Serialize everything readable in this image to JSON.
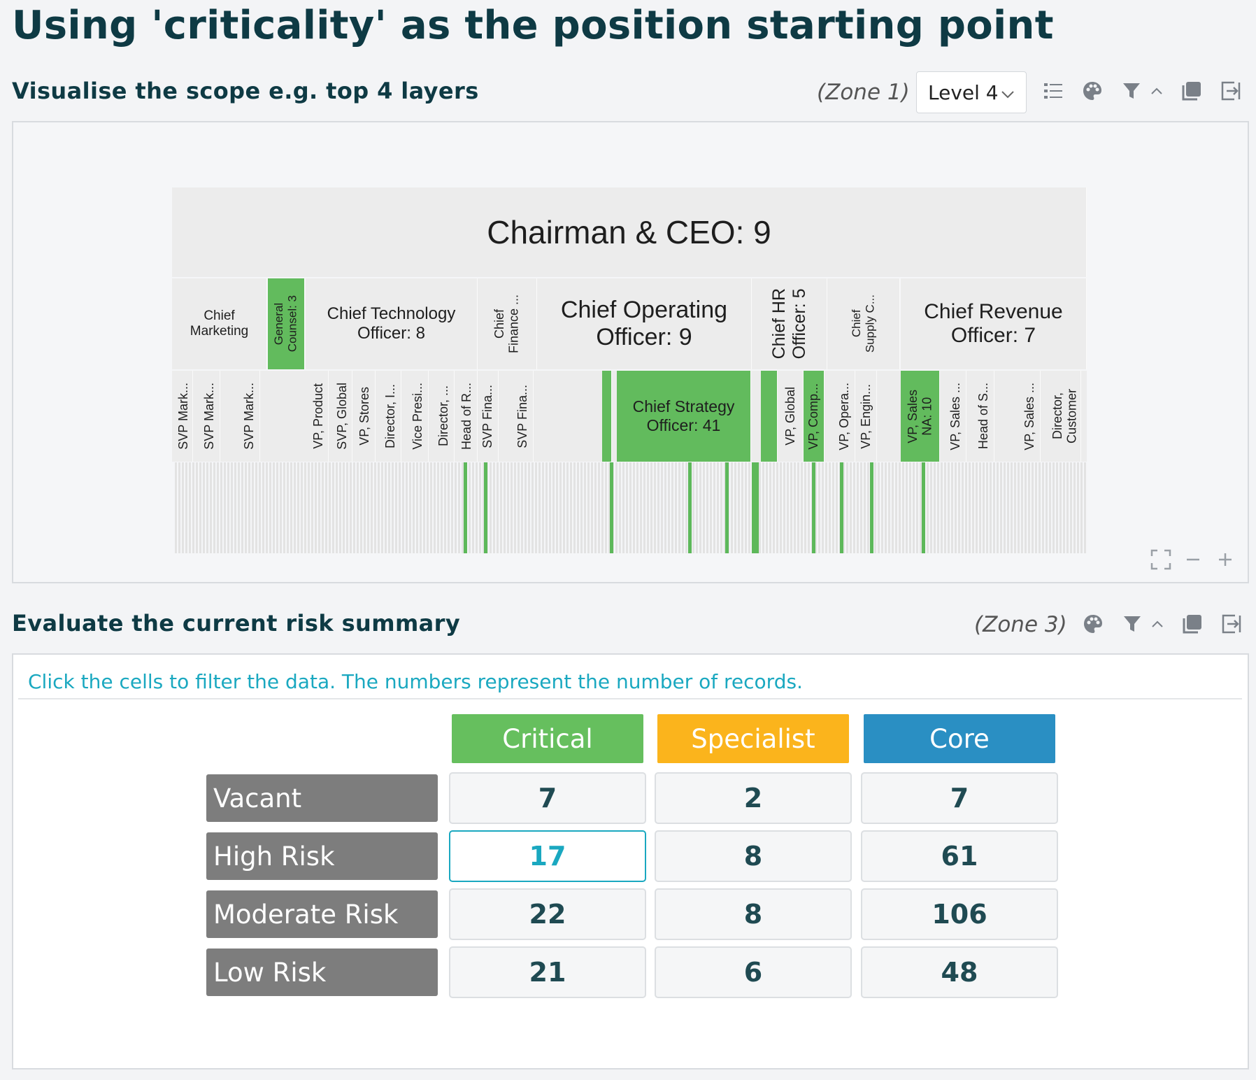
{
  "page": {
    "title": "Using 'criticality' as the position starting point"
  },
  "zone1": {
    "title": "Visualise the scope e.g. top 4 layers",
    "zone_label": "(Zone 1)",
    "level_select": {
      "value": "Level 4"
    },
    "toolbar_icons": [
      "list-icon",
      "palette-icon",
      "filter-icon",
      "collapse-icon",
      "copy-icon",
      "export-icon"
    ],
    "org_chart": {
      "root": {
        "label": "Chairman & CEO: 9"
      },
      "level2": [
        {
          "label": "Chief\nMarketing",
          "critical": false,
          "vertical": false
        },
        {
          "label": "General\nCounsel: 3",
          "critical": true,
          "vertical": true
        },
        {
          "label": "Chief Technology\nOfficer: 8",
          "critical": false,
          "vertical": false
        },
        {
          "label": "Chief\nFinance ...",
          "critical": false,
          "vertical": true
        },
        {
          "label": "Chief Operating\nOfficer: 9",
          "critical": false,
          "vertical": false
        },
        {
          "label": "Chief HR\nOfficer: 5",
          "critical": false,
          "vertical": true
        },
        {
          "label": "Chief\nSupply C...",
          "critical": false,
          "vertical": true
        },
        {
          "label": "Chief Revenue\nOfficer: 7",
          "critical": false,
          "vertical": false
        }
      ],
      "level3": [
        {
          "label": "SVP Mark...",
          "critical": false
        },
        {
          "label": "SVP Mark...",
          "critical": false
        },
        {
          "label": "SVP Mark...",
          "critical": false
        },
        {
          "label": "VP, Product",
          "critical": false
        },
        {
          "label": "SVP, Global",
          "critical": false
        },
        {
          "label": "VP, Stores",
          "critical": false
        },
        {
          "label": "Director, I...",
          "critical": false
        },
        {
          "label": "Vice Presi...",
          "critical": false
        },
        {
          "label": "Director, ...",
          "critical": false
        },
        {
          "label": "Head of R...",
          "critical": false
        },
        {
          "label": "SVP Fina...",
          "critical": false
        },
        {
          "label": "SVP Fina...",
          "critical": false
        },
        {
          "label": "Chief Strategy\nOfficer: 41",
          "critical": true
        },
        {
          "label": "VP, Global",
          "critical": false
        },
        {
          "label": "VP, Comp...",
          "critical": true
        },
        {
          "label": "VP, Opera...",
          "critical": false
        },
        {
          "label": "VP, Engin...",
          "critical": false
        },
        {
          "label": "VP, Sales\nNA: 10",
          "critical": true
        },
        {
          "label": "VP, Sales ...",
          "critical": false
        },
        {
          "label": "Head of S...",
          "critical": false
        },
        {
          "label": "VP, Sales ...",
          "critical": false
        },
        {
          "label": "Director,\nCustomer",
          "critical": false
        }
      ]
    },
    "zoom_controls": [
      "fullscreen-icon",
      "zoom-out-icon",
      "zoom-in-icon"
    ]
  },
  "zone3": {
    "title": "Evaluate the current risk summary",
    "zone_label": "(Zone 3)",
    "hint": "Click the cells to filter the data. The numbers represent the number of records.",
    "columns": [
      {
        "label": "Critical",
        "color": "#66bf5e"
      },
      {
        "label": "Specialist",
        "color": "#fbb41c"
      },
      {
        "label": "Core",
        "color": "#2a8fc3"
      }
    ],
    "rows": [
      {
        "label": "Vacant",
        "values": [
          "7",
          "2",
          "7"
        ]
      },
      {
        "label": "High Risk",
        "values": [
          "17",
          "8",
          "61"
        ]
      },
      {
        "label": "Moderate Risk",
        "values": [
          "22",
          "8",
          "106"
        ]
      },
      {
        "label": "Low Risk",
        "values": [
          "21",
          "6",
          "48"
        ]
      }
    ],
    "selected_cell": {
      "row": "High Risk",
      "column": "Critical"
    }
  }
}
